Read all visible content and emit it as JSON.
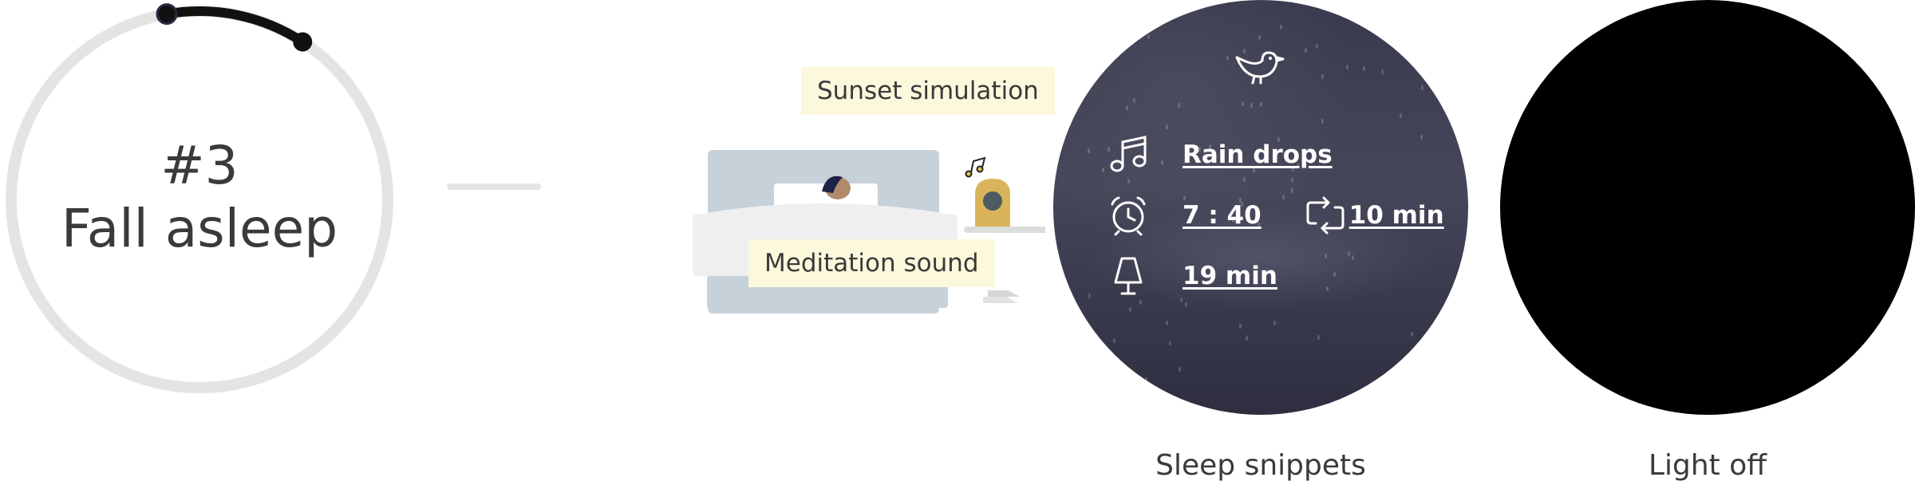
{
  "step": {
    "number": "#3",
    "title": "Fall asleep",
    "progress": 0.12
  },
  "tags": {
    "sunset": "Sunset simulation",
    "meditation": "Meditation sound"
  },
  "snippet": {
    "icon": "bird-icon",
    "sound": "Rain drops",
    "alarm_time": "7 : 40",
    "snooze": "10 min",
    "light_timer": "19 min"
  },
  "captions": {
    "sleep": "Sleep snippets",
    "light": "Light off"
  },
  "colors": {
    "ring_track": "#e4e4e4",
    "ring_progress": "#111111",
    "tag_bg": "#fbf8dc",
    "snippet_bg": "#3e3e52",
    "light_off": "#000000",
    "lamp_gold": "#d9b45a"
  }
}
